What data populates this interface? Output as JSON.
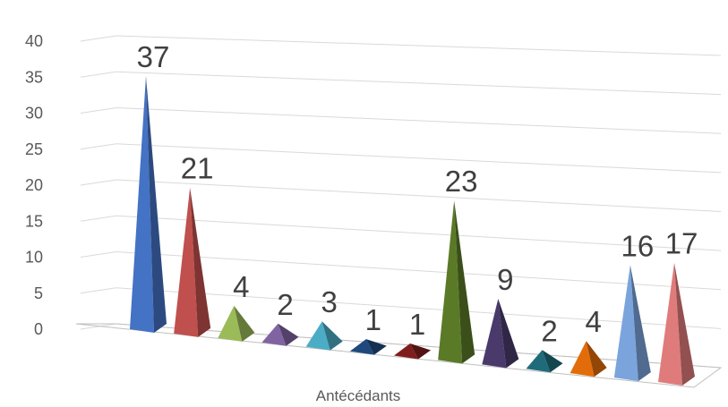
{
  "chart_data": {
    "type": "bar",
    "bar_shape": "pyramid-3d",
    "title": "",
    "xlabel": "Antécédants",
    "ylabel": "",
    "ylim": [
      0,
      40
    ],
    "yticks": [
      "0",
      "5",
      "10",
      "15",
      "20",
      "25",
      "30",
      "35",
      "40"
    ],
    "grid": true,
    "legend": "none",
    "values": [
      37,
      21,
      4,
      2,
      3,
      1,
      1,
      23,
      9,
      2,
      4,
      16,
      17
    ],
    "colors": [
      "#4472c4",
      "#c0504d",
      "#9bbb59",
      "#8064a2",
      "#4bacc6",
      "#1f497d",
      "#7f1d1d",
      "#5b7a28",
      "#4a3a6b",
      "#1f6b7a",
      "#e36c0a",
      "#7ba4dc",
      "#e07b7b"
    ]
  }
}
